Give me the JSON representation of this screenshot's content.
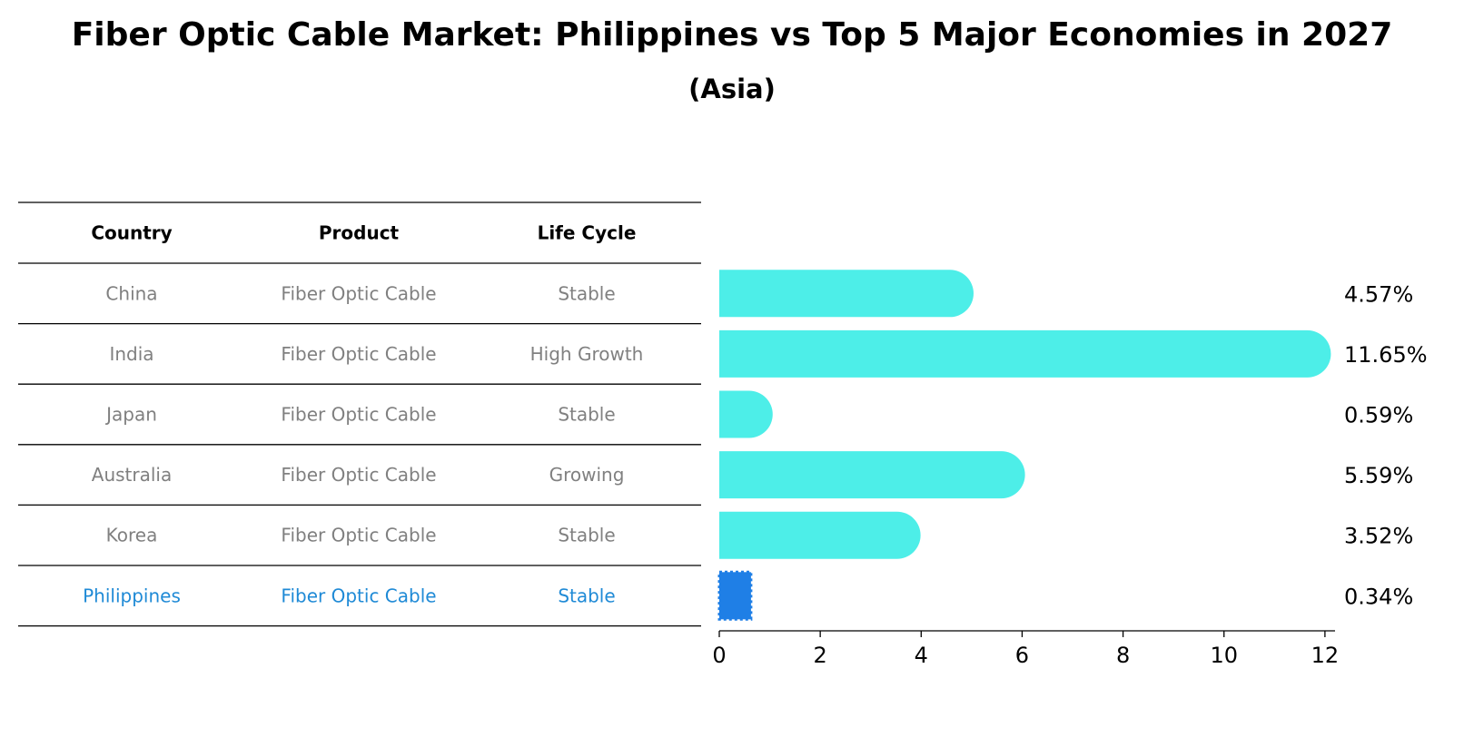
{
  "chart_data": {
    "type": "bar",
    "title": "Fiber Optic Cable Market: Philippines vs Top 5 Major Economies in 2027",
    "subtitle": "(Asia)",
    "table": {
      "headers": [
        "Country",
        "Product",
        "Life Cycle"
      ],
      "rows": [
        {
          "country": "China",
          "product": "Fiber Optic Cable",
          "life_cycle": "Stable"
        },
        {
          "country": "India",
          "product": "Fiber Optic Cable",
          "life_cycle": "High Growth"
        },
        {
          "country": "Japan",
          "product": "Fiber Optic Cable",
          "life_cycle": "Stable"
        },
        {
          "country": "Australia",
          "product": "Fiber Optic Cable",
          "life_cycle": "Growing"
        },
        {
          "country": "Korea",
          "product": "Fiber Optic Cable",
          "life_cycle": "Stable"
        },
        {
          "country": "Philippines",
          "product": "Fiber Optic Cable",
          "life_cycle": "Stable"
        }
      ]
    },
    "categories": [
      "China",
      "India",
      "Japan",
      "Australia",
      "Korea",
      "Philippines"
    ],
    "values": [
      4.57,
      11.65,
      0.59,
      5.59,
      3.52,
      0.34
    ],
    "value_labels": [
      "4.57%",
      "11.65%",
      "0.59%",
      "5.59%",
      "3.52%",
      "0.34%"
    ],
    "highlight": "Philippines",
    "xlim": [
      0,
      12.2
    ],
    "xticks": [
      0,
      2,
      4,
      6,
      8,
      10,
      12
    ],
    "grid": false,
    "colors": {
      "bar": "#4deee8",
      "highlight": "#1f7fe6",
      "table_text": "#808080",
      "highlight_text": "#1f8ad6",
      "text": "#000000"
    }
  }
}
